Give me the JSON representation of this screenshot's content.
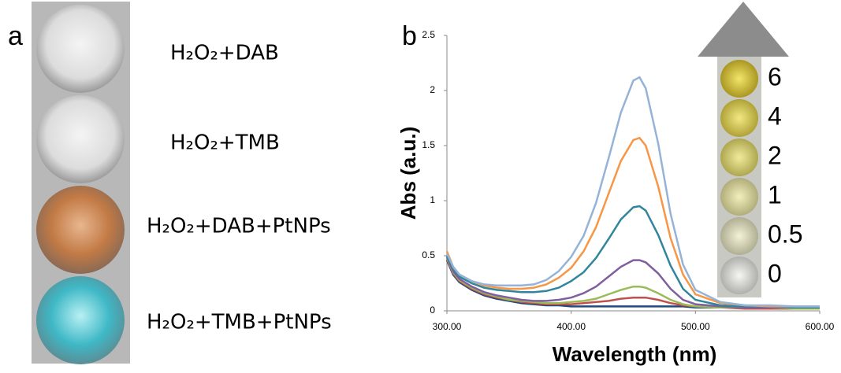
{
  "panel_a": {
    "label": "a",
    "wells": [
      "H₂O₂+DAB",
      "H₂O₂+TMB",
      "H₂O₂+DAB+PtNPs",
      "H₂O₂+TMB+PtNPs"
    ]
  },
  "chart_data": {
    "type": "line",
    "panel_label": "b",
    "x_label": "Wavelength (nm)",
    "y_label": "Abs (a.u.)",
    "x": [
      300,
      305,
      310,
      320,
      330,
      340,
      350,
      360,
      370,
      380,
      390,
      400,
      410,
      420,
      430,
      440,
      450,
      455,
      460,
      470,
      480,
      490,
      500,
      520,
      540,
      560,
      580,
      600
    ],
    "xlim": [
      300,
      600
    ],
    "xticks": [
      {
        "value": 300,
        "label": "300.00"
      },
      {
        "value": 400,
        "label": "400.00"
      },
      {
        "value": 500,
        "label": "500.00"
      },
      {
        "value": 600,
        "label": "600.00"
      }
    ],
    "ylim": [
      0,
      2.5
    ],
    "yticks": [
      0,
      0.5,
      1,
      1.5,
      2,
      2.5
    ],
    "series": [
      {
        "name": "6",
        "color": "#95b3d7",
        "values": [
          0.52,
          0.4,
          0.33,
          0.27,
          0.24,
          0.23,
          0.23,
          0.23,
          0.24,
          0.28,
          0.36,
          0.49,
          0.68,
          0.98,
          1.38,
          1.8,
          2.09,
          2.12,
          2.02,
          1.52,
          0.88,
          0.42,
          0.19,
          0.08,
          0.05,
          0.05,
          0.04,
          0.04
        ]
      },
      {
        "name": "4",
        "color": "#f79646",
        "values": [
          0.54,
          0.4,
          0.33,
          0.27,
          0.23,
          0.21,
          0.2,
          0.2,
          0.21,
          0.24,
          0.3,
          0.39,
          0.54,
          0.76,
          1.06,
          1.36,
          1.55,
          1.57,
          1.5,
          1.13,
          0.66,
          0.33,
          0.15,
          0.07,
          0.05,
          0.04,
          0.04,
          0.04
        ]
      },
      {
        "name": "2",
        "color": "#31859c",
        "values": [
          0.5,
          0.38,
          0.31,
          0.25,
          0.21,
          0.19,
          0.18,
          0.17,
          0.17,
          0.18,
          0.21,
          0.27,
          0.35,
          0.48,
          0.65,
          0.83,
          0.94,
          0.95,
          0.91,
          0.69,
          0.41,
          0.2,
          0.1,
          0.05,
          0.04,
          0.04,
          0.03,
          0.03
        ]
      },
      {
        "name": "1",
        "color": "#7f5f9f",
        "values": [
          0.49,
          0.36,
          0.29,
          0.22,
          0.17,
          0.14,
          0.12,
          0.1,
          0.09,
          0.09,
          0.1,
          0.12,
          0.16,
          0.22,
          0.31,
          0.4,
          0.46,
          0.46,
          0.44,
          0.34,
          0.2,
          0.1,
          0.06,
          0.04,
          0.03,
          0.03,
          0.03,
          0.03
        ]
      },
      {
        "name": "0.5",
        "color": "#9bbb59",
        "values": [
          0.48,
          0.35,
          0.28,
          0.21,
          0.16,
          0.13,
          0.1,
          0.09,
          0.08,
          0.07,
          0.07,
          0.08,
          0.09,
          0.11,
          0.15,
          0.19,
          0.22,
          0.22,
          0.21,
          0.16,
          0.1,
          0.06,
          0.04,
          0.03,
          0.03,
          0.03,
          0.02,
          0.02
        ]
      },
      {
        "name": "0",
        "color": "#c0504d",
        "values": [
          0.47,
          0.34,
          0.27,
          0.2,
          0.15,
          0.12,
          0.1,
          0.08,
          0.07,
          0.06,
          0.06,
          0.06,
          0.07,
          0.08,
          0.09,
          0.11,
          0.12,
          0.12,
          0.12,
          0.1,
          0.07,
          0.05,
          0.04,
          0.03,
          0.02,
          0.02,
          0.02,
          0.02
        ]
      },
      {
        "color": "#1f497d",
        "values": [
          0.46,
          0.33,
          0.26,
          0.19,
          0.14,
          0.11,
          0.09,
          0.07,
          0.06,
          0.05,
          0.05,
          0.04,
          0.04,
          0.04,
          0.04,
          0.04,
          0.04,
          0.04,
          0.04,
          0.04,
          0.04,
          0.04,
          0.03,
          0.03,
          0.03,
          0.03,
          0.03,
          0.03
        ]
      }
    ]
  }
}
